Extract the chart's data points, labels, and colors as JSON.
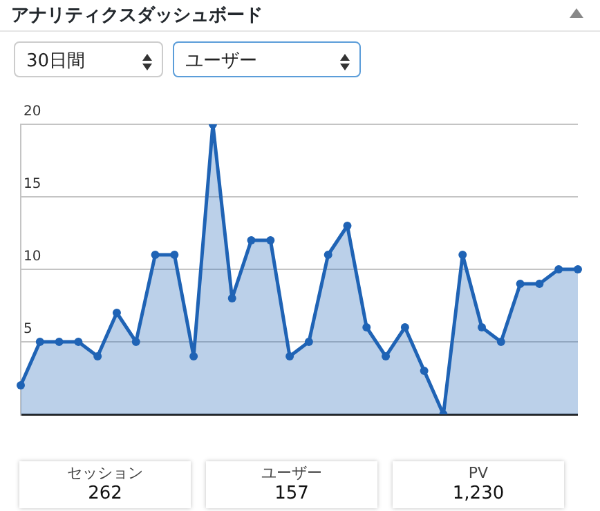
{
  "chart_data": {
    "type": "area",
    "title": "アナリティクスダッシュボード",
    "annotations": [
      "30日間",
      "ユーザー",
      "セッション",
      "262",
      "ユーザー",
      "157",
      "PV",
      "1,230"
    ],
    "categories": [
      null,
      null,
      null,
      null,
      null,
      null,
      null,
      null,
      null,
      null,
      null,
      null,
      null,
      null,
      null,
      null,
      null,
      null,
      null,
      null,
      null,
      null,
      null,
      null,
      null,
      null,
      null,
      null,
      null,
      null
    ],
    "series": [
      {
        "color": "#1f63b5",
        "values": [
          2,
          5,
          5,
          5,
          4,
          7,
          5,
          11,
          11,
          4,
          20,
          8,
          12,
          12,
          4,
          5,
          11,
          13,
          6,
          4,
          6,
          3,
          0,
          11,
          6,
          5,
          9,
          9,
          10,
          10
        ]
      }
    ],
    "ylim": [
      0,
      20
    ],
    "yticks": [
      {
        "value": 0,
        "label": null
      },
      5,
      10,
      15,
      20
    ],
    "grid": "y",
    "marker": "circle"
  }
}
